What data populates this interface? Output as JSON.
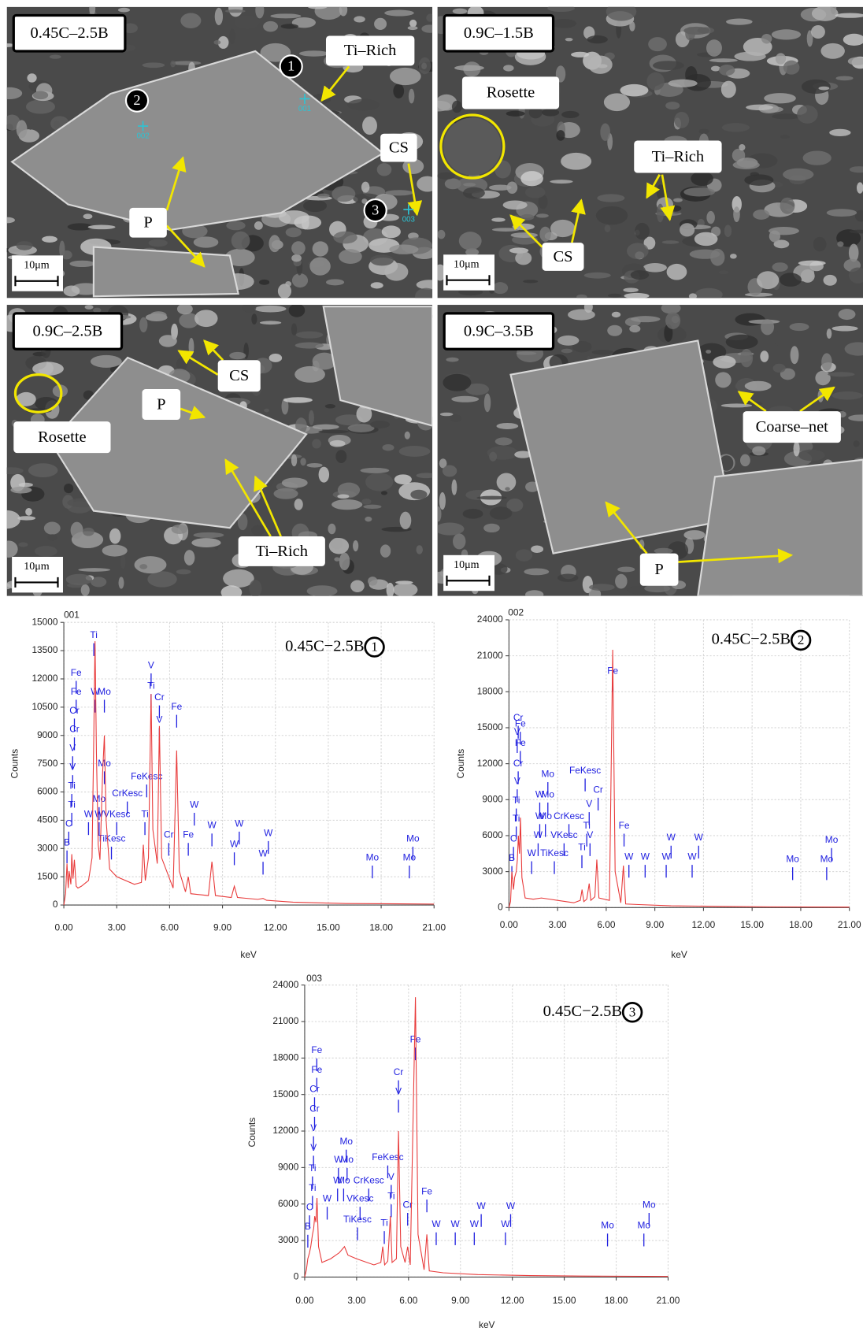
{
  "micrographs": [
    {
      "label": "0.45C–2.5B",
      "scale_bar": "10μm",
      "callouts": [
        "Ti–Rich",
        "CS",
        "P"
      ],
      "points": [
        "1",
        "2",
        "3"
      ],
      "spots": [
        "001",
        "002",
        "003"
      ]
    },
    {
      "label": "0.9C–1.5B",
      "scale_bar": "10μm",
      "callouts": [
        "Rosette",
        "Ti–Rich",
        "CS"
      ]
    },
    {
      "label": "0.9C–2.5B",
      "scale_bar": "10μm",
      "callouts": [
        "CS",
        "P",
        "Rosette",
        "Ti–Rich"
      ]
    },
    {
      "label": "0.9C–3.5B",
      "scale_bar": "10μm",
      "callouts": [
        "Coarse–net",
        "P"
      ]
    }
  ],
  "chart_data": [
    {
      "type": "line",
      "title": "001",
      "annotation": "0.45C−2.5B",
      "annotation_marker": "1",
      "x_label": "keV",
      "y_label": "Counts",
      "color": "#e83a3a",
      "marker_color": "#2020e0",
      "grid": true,
      "xlim": [
        0,
        21
      ],
      "xticks": [
        {
          "value": 0,
          "label": "0.00"
        },
        {
          "value": 3,
          "label": "3.00"
        },
        {
          "value": 6,
          "label": "6.00"
        },
        {
          "value": 9,
          "label": "9.00"
        },
        {
          "value": 12,
          "label": "12.00"
        },
        {
          "value": 15,
          "label": "15.00"
        },
        {
          "value": 18,
          "label": "18.00"
        },
        {
          "value": 21,
          "label": "21.00"
        }
      ],
      "ylim": [
        0,
        15000
      ],
      "yticks": [
        0,
        1500,
        3000,
        4500,
        6000,
        7500,
        9000,
        10500,
        12000,
        13500,
        15000
      ],
      "x": [
        0,
        0.1,
        0.18,
        0.25,
        0.3,
        0.4,
        0.45,
        0.52,
        0.6,
        0.7,
        0.8,
        1.0,
        1.4,
        1.6,
        1.7,
        1.77,
        1.85,
        1.95,
        2.05,
        2.2,
        2.3,
        2.4,
        2.6,
        3.0,
        4.0,
        4.4,
        4.51,
        4.62,
        4.8,
        4.95,
        5.05,
        5.3,
        5.42,
        5.55,
        6.2,
        6.4,
        6.55,
        6.9,
        7.06,
        7.2,
        8.2,
        8.4,
        8.6,
        9.5,
        9.67,
        9.85,
        11,
        11.3,
        11.5,
        13,
        16,
        21
      ],
      "values": [
        0,
        600,
        2200,
        900,
        1800,
        1100,
        2700,
        1400,
        2400,
        1000,
        900,
        1000,
        1300,
        2500,
        9000,
        14000,
        8000,
        3200,
        2400,
        7000,
        9000,
        4500,
        1900,
        1500,
        1100,
        1200,
        3200,
        1300,
        2500,
        11200,
        4000,
        2200,
        9500,
        2500,
        900,
        8200,
        1800,
        700,
        1500,
        600,
        500,
        2300,
        500,
        400,
        1000,
        400,
        300,
        350,
        250,
        150,
        80,
        50
      ],
      "markers": [
        {
          "label": "Fe",
          "x": 0.7,
          "y": 12300
        },
        {
          "label": "Fe",
          "x": 0.7,
          "y": 11300
        },
        {
          "label": "Cr",
          "x": 0.6,
          "y": 10300
        },
        {
          "label": "Cr",
          "x": 0.6,
          "y": 9300
        },
        {
          "label": "V",
          "x": 0.5,
          "y": 8300
        },
        {
          "label": "V",
          "x": 0.5,
          "y": 7300
        },
        {
          "label": "Ti",
          "x": 0.45,
          "y": 6300
        },
        {
          "label": "Ti",
          "x": 0.45,
          "y": 5300
        },
        {
          "label": "C",
          "x": 0.28,
          "y": 4300
        },
        {
          "label": "B",
          "x": 0.18,
          "y": 3300
        },
        {
          "label": "Ti",
          "x": 1.7,
          "y": 14300
        },
        {
          "label": "W",
          "x": 1.78,
          "y": 11300
        },
        {
          "label": "Mo",
          "x": 2.3,
          "y": 11300
        },
        {
          "label": "Mo",
          "x": 2.3,
          "y": 7500
        },
        {
          "label": "Mo",
          "x": 2.0,
          "y": 5600
        },
        {
          "label": "W",
          "x": 1.4,
          "y": 4800
        },
        {
          "label": "W",
          "x": 2.0,
          "y": 4800
        },
        {
          "label": "VKesc",
          "x": 3.0,
          "y": 4800
        },
        {
          "label": "TiKesc",
          "x": 2.7,
          "y": 3500
        },
        {
          "label": "CrKesc",
          "x": 3.6,
          "y": 5900
        },
        {
          "label": "FeKesc",
          "x": 4.7,
          "y": 6800
        },
        {
          "label": "Ti",
          "x": 4.6,
          "y": 4800
        },
        {
          "label": "V",
          "x": 4.95,
          "y": 12700
        },
        {
          "label": "Ti",
          "x": 4.95,
          "y": 11600
        },
        {
          "label": "Cr",
          "x": 5.42,
          "y": 11000
        },
        {
          "label": "V",
          "x": 5.42,
          "y": 9800
        },
        {
          "label": "Fe",
          "x": 6.4,
          "y": 10500
        },
        {
          "label": "Cr",
          "x": 5.95,
          "y": 3700
        },
        {
          "label": "W",
          "x": 7.4,
          "y": 5300
        },
        {
          "label": "Fe",
          "x": 7.06,
          "y": 3700
        },
        {
          "label": "W",
          "x": 8.4,
          "y": 4200
        },
        {
          "label": "W",
          "x": 9.95,
          "y": 4300
        },
        {
          "label": "W",
          "x": 9.67,
          "y": 3200
        },
        {
          "label": "W",
          "x": 11.6,
          "y": 3800
        },
        {
          "label": "W",
          "x": 11.3,
          "y": 2700
        },
        {
          "label": "Mo",
          "x": 17.5,
          "y": 2500
        },
        {
          "label": "Mo",
          "x": 19.8,
          "y": 3500
        },
        {
          "label": "Mo",
          "x": 19.6,
          "y": 2500
        }
      ]
    },
    {
      "type": "line",
      "title": "002",
      "annotation": "0.45C−2.5B",
      "annotation_marker": "2",
      "x_label": "keV",
      "y_label": "Counts",
      "color": "#e83a3a",
      "marker_color": "#2020e0",
      "grid": true,
      "xlim": [
        0,
        21
      ],
      "xticks": [
        {
          "value": 0,
          "label": "0.00"
        },
        {
          "value": 3,
          "label": "3.00"
        },
        {
          "value": 6,
          "label": "6.00"
        },
        {
          "value": 9,
          "label": "9.00"
        },
        {
          "value": 12,
          "label": "12.00"
        },
        {
          "value": 15,
          "label": "15.00"
        },
        {
          "value": 18,
          "label": "18.00"
        },
        {
          "value": 21,
          "label": "21.00"
        }
      ],
      "ylim": [
        0,
        24000
      ],
      "yticks": [
        0,
        3000,
        6000,
        9000,
        12000,
        15000,
        18000,
        21000,
        24000
      ],
      "x": [
        0,
        0.1,
        0.18,
        0.28,
        0.35,
        0.45,
        0.52,
        0.58,
        0.65,
        0.71,
        0.8,
        1.0,
        1.5,
        2.0,
        2.5,
        3.0,
        4.0,
        4.4,
        4.51,
        4.62,
        4.8,
        4.95,
        5.05,
        5.3,
        5.42,
        5.55,
        6.2,
        6.4,
        6.55,
        6.9,
        7.06,
        7.2,
        8,
        10,
        13,
        16,
        21
      ],
      "values": [
        0,
        500,
        3000,
        1500,
        2500,
        3000,
        4000,
        6000,
        4500,
        7500,
        2500,
        800,
        700,
        800,
        700,
        600,
        400,
        600,
        1500,
        500,
        700,
        2000,
        600,
        900,
        4000,
        800,
        600,
        21500,
        3000,
        400,
        3500,
        300,
        250,
        150,
        100,
        60,
        40
      ],
      "markers": [
        {
          "label": "Cr",
          "x": 0.57,
          "y": 15800
        },
        {
          "label": "Fe",
          "x": 0.7,
          "y": 15300
        },
        {
          "label": "V",
          "x": 0.51,
          "y": 14600
        },
        {
          "label": "Fe",
          "x": 0.7,
          "y": 13700
        },
        {
          "label": "Cr",
          "x": 0.57,
          "y": 12000
        },
        {
          "label": "V",
          "x": 0.51,
          "y": 10500
        },
        {
          "label": "Ti",
          "x": 0.45,
          "y": 8900
        },
        {
          "label": "Ti",
          "x": 0.45,
          "y": 7400
        },
        {
          "label": "C",
          "x": 0.28,
          "y": 5700
        },
        {
          "label": "B",
          "x": 0.18,
          "y": 4100
        },
        {
          "label": "Mo",
          "x": 2.4,
          "y": 11100
        },
        {
          "label": "W",
          "x": 1.9,
          "y": 9400
        },
        {
          "label": "Mo",
          "x": 2.4,
          "y": 9400
        },
        {
          "label": "W",
          "x": 1.9,
          "y": 7600
        },
        {
          "label": "Mo",
          "x": 2.25,
          "y": 7600
        },
        {
          "label": "CrKesc",
          "x": 3.7,
          "y": 7600
        },
        {
          "label": "FeKesc",
          "x": 4.7,
          "y": 11400
        },
        {
          "label": "Cr",
          "x": 5.5,
          "y": 9800
        },
        {
          "label": "V",
          "x": 4.95,
          "y": 8600
        },
        {
          "label": "Ti",
          "x": 4.8,
          "y": 6800
        },
        {
          "label": "V",
          "x": 5.0,
          "y": 6000
        },
        {
          "label": "W",
          "x": 1.8,
          "y": 6000
        },
        {
          "label": "VKesc",
          "x": 3.4,
          "y": 6000
        },
        {
          "label": "W",
          "x": 1.4,
          "y": 4500
        },
        {
          "label": "TiKesc",
          "x": 2.8,
          "y": 4500
        },
        {
          "label": "Ti",
          "x": 4.5,
          "y": 5000
        },
        {
          "label": "Fe",
          "x": 6.4,
          "y": 19700
        },
        {
          "label": "Fe",
          "x": 7.1,
          "y": 6800
        },
        {
          "label": "W",
          "x": 7.4,
          "y": 4200
        },
        {
          "label": "W",
          "x": 8.4,
          "y": 4200
        },
        {
          "label": "W",
          "x": 10.0,
          "y": 5800
        },
        {
          "label": "W",
          "x": 9.7,
          "y": 4200
        },
        {
          "label": "W",
          "x": 11.7,
          "y": 5800
        },
        {
          "label": "W",
          "x": 11.3,
          "y": 4200
        },
        {
          "label": "Mo",
          "x": 17.5,
          "y": 4000
        },
        {
          "label": "Mo",
          "x": 19.9,
          "y": 5600
        },
        {
          "label": "Mo",
          "x": 19.6,
          "y": 4000
        }
      ]
    },
    {
      "type": "line",
      "title": "003",
      "annotation": "0.45C−2.5B",
      "annotation_marker": "3",
      "x_label": "keV",
      "y_label": "Counts",
      "color": "#e83a3a",
      "marker_color": "#2020e0",
      "grid": true,
      "xlim": [
        0,
        21
      ],
      "xticks": [
        {
          "value": 0,
          "label": "0.00"
        },
        {
          "value": 3,
          "label": "3.00"
        },
        {
          "value": 6,
          "label": "6.00"
        },
        {
          "value": 9,
          "label": "9.00"
        },
        {
          "value": 12,
          "label": "12.00"
        },
        {
          "value": 15,
          "label": "15.00"
        },
        {
          "value": 18,
          "label": "18.00"
        },
        {
          "value": 21,
          "label": "21.00"
        }
      ],
      "ylim": [
        0,
        24000
      ],
      "yticks": [
        0,
        3000,
        6000,
        9000,
        12000,
        15000,
        18000,
        21000,
        24000
      ],
      "x": [
        0,
        0.1,
        0.18,
        0.28,
        0.35,
        0.45,
        0.52,
        0.58,
        0.65,
        0.71,
        0.8,
        1.0,
        1.5,
        1.8,
        2.0,
        2.3,
        2.5,
        3.0,
        4.0,
        4.4,
        4.51,
        4.62,
        4.8,
        4.95,
        5.05,
        5.3,
        5.42,
        5.55,
        5.8,
        5.95,
        6.1,
        6.4,
        6.55,
        6.9,
        7.06,
        7.2,
        8,
        10,
        13,
        16,
        21
      ],
      "values": [
        0,
        600,
        1500,
        2000,
        2500,
        3500,
        4000,
        5000,
        4500,
        6500,
        2500,
        1200,
        1500,
        1800,
        2000,
        2500,
        1800,
        1500,
        1000,
        1200,
        2500,
        1000,
        1300,
        5000,
        1200,
        1500,
        12000,
        2500,
        1200,
        2500,
        1000,
        23000,
        3500,
        600,
        3500,
        500,
        350,
        200,
        120,
        80,
        50
      ],
      "markers": [
        {
          "label": "Fe",
          "x": 0.7,
          "y": 18600
        },
        {
          "label": "Fe",
          "x": 0.7,
          "y": 17000
        },
        {
          "label": "Cr",
          "x": 0.57,
          "y": 15400
        },
        {
          "label": "Cr",
          "x": 0.57,
          "y": 13800
        },
        {
          "label": "V",
          "x": 0.51,
          "y": 12200
        },
        {
          "label": "V",
          "x": 0.51,
          "y": 10600
        },
        {
          "label": "Ti",
          "x": 0.45,
          "y": 8900
        },
        {
          "label": "Ti",
          "x": 0.45,
          "y": 7300
        },
        {
          "label": "C",
          "x": 0.28,
          "y": 5700
        },
        {
          "label": "B",
          "x": 0.18,
          "y": 4100
        },
        {
          "label": "Mo",
          "x": 2.4,
          "y": 11100
        },
        {
          "label": "W",
          "x": 1.95,
          "y": 9600
        },
        {
          "label": "Mo",
          "x": 2.45,
          "y": 9600
        },
        {
          "label": "W",
          "x": 1.9,
          "y": 7900
        },
        {
          "label": "Mo",
          "x": 2.25,
          "y": 7900
        },
        {
          "label": "CrKesc",
          "x": 3.7,
          "y": 7900
        },
        {
          "label": "FeKesc",
          "x": 4.8,
          "y": 9800
        },
        {
          "label": "V",
          "x": 5.0,
          "y": 8200
        },
        {
          "label": "Ti",
          "x": 5.0,
          "y": 6600
        },
        {
          "label": "Ti",
          "x": 4.6,
          "y": 4400
        },
        {
          "label": "Cr",
          "x": 5.42,
          "y": 16800
        },
        {
          "label": "V",
          "x": 5.42,
          "y": 15200
        },
        {
          "label": "Fe",
          "x": 6.4,
          "y": 19500
        },
        {
          "label": "Cr",
          "x": 5.95,
          "y": 5900
        },
        {
          "label": "Fe",
          "x": 7.06,
          "y": 7000
        },
        {
          "label": "W",
          "x": 1.3,
          "y": 6400
        },
        {
          "label": "VKesc",
          "x": 3.2,
          "y": 6400
        },
        {
          "label": "TiKesc",
          "x": 3.05,
          "y": 4700
        },
        {
          "label": "W",
          "x": 7.6,
          "y": 4300
        },
        {
          "label": "W",
          "x": 8.7,
          "y": 4300
        },
        {
          "label": "W",
          "x": 10.2,
          "y": 5800
        },
        {
          "label": "W",
          "x": 9.8,
          "y": 4300
        },
        {
          "label": "W",
          "x": 11.9,
          "y": 5800
        },
        {
          "label": "W",
          "x": 11.6,
          "y": 4300
        },
        {
          "label": "Mo",
          "x": 17.5,
          "y": 4200
        },
        {
          "label": "Mo",
          "x": 19.9,
          "y": 5900
        },
        {
          "label": "Mo",
          "x": 19.6,
          "y": 4200
        }
      ]
    }
  ]
}
